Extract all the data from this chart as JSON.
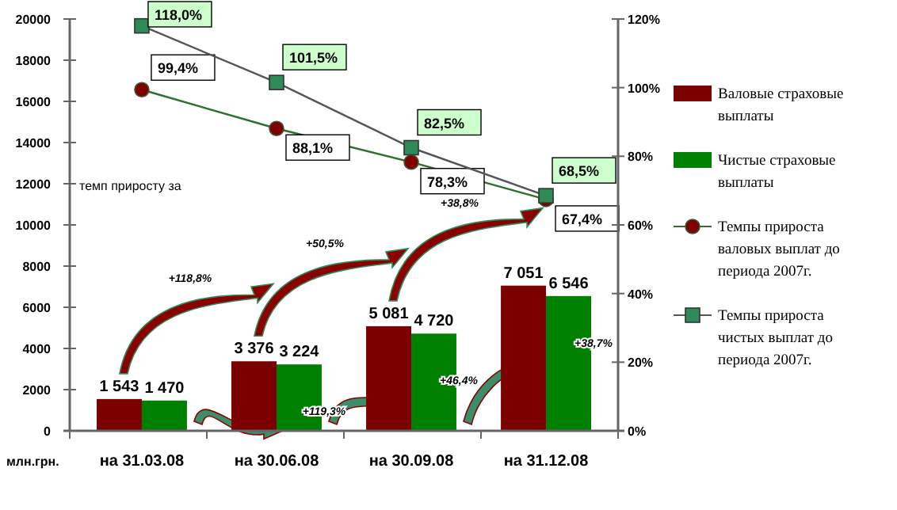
{
  "chart_data": {
    "type": "bar",
    "categories": [
      "на 31.03.08",
      "на 30.06.08",
      "на 30.09.08",
      "на 31.12.08"
    ],
    "xlabel": "млн.грн.",
    "series": [
      {
        "name": "Валовые страховые выплаты",
        "color": "#7b0000",
        "values": [
          1543,
          3376,
          5081,
          7051
        ],
        "value_labels": [
          "1 543",
          "3 376",
          "5 081",
          "7 051"
        ]
      },
      {
        "name": "Чистые страховые выплаты",
        "color": "#008000",
        "values": [
          1470,
          3224,
          4720,
          6546
        ],
        "value_labels": [
          "1 470",
          "3 224",
          "4 720",
          "6 546"
        ]
      },
      {
        "name": "Темпы прироста валовых выплат до периода 2007г.",
        "type": "line",
        "axis": "y2",
        "marker": "circle",
        "color": "#800000",
        "values": [
          99.4,
          88.1,
          78.3,
          67.4
        ],
        "value_labels": [
          "99,4%",
          "88,1%",
          "78,3%",
          "67,4%"
        ]
      },
      {
        "name": "Темпы прироста чистых выплат до периода 2007г.",
        "type": "line",
        "axis": "y2",
        "marker": "square",
        "color": "#2e8b57",
        "values": [
          118.0,
          101.5,
          82.5,
          68.5
        ],
        "value_labels": [
          "118,0%",
          "101,5%",
          "82,5%",
          "68,5%"
        ]
      }
    ],
    "ylim": [
      0,
      20000
    ],
    "yticks": [
      0,
      2000,
      4000,
      6000,
      8000,
      10000,
      12000,
      14000,
      16000,
      18000,
      20000
    ],
    "y2lim": [
      0,
      120
    ],
    "y2ticks": [
      {
        "value": 0,
        "label": "0%"
      },
      {
        "value": 20,
        "label": "20%"
      },
      {
        "value": 40,
        "label": "40%"
      },
      {
        "value": 60,
        "label": "60%"
      },
      {
        "value": 80,
        "label": "80%"
      },
      {
        "value": 100,
        "label": "100%"
      },
      {
        "value": 120,
        "label": "120%"
      }
    ],
    "annotations": [
      "темп приросту за",
      "+118,8%",
      "+119,3%",
      "+50,5%",
      "+46,4%",
      "+38,8%",
      "+38,7%"
    ],
    "legend": "right",
    "grid": false
  }
}
